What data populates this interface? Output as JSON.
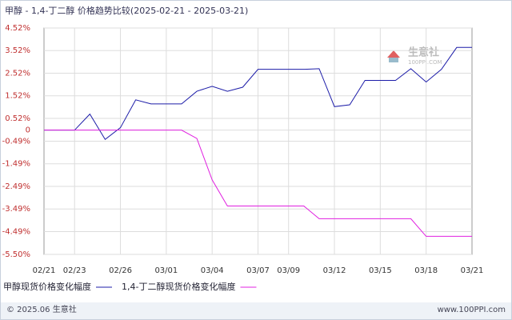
{
  "chart_data": {
    "type": "line",
    "title": "甲醇 - 1,4-丁二醇 价格趋势比较(2025-02-21 - 2025-03-21)",
    "categories": [
      "02/21",
      null,
      "02/23",
      null,
      null,
      "02/26",
      null,
      null,
      "03/01",
      null,
      null,
      "03/04",
      null,
      null,
      "03/07",
      null,
      "03/09",
      null,
      null,
      "03/12",
      null,
      null,
      "03/15",
      null,
      null,
      "03/18",
      null,
      null,
      "03/21"
    ],
    "series": [
      {
        "name": "甲醇现货价格变化幅度",
        "color": "#1c1ca8",
        "values": [
          0,
          0,
          0,
          0.71,
          -0.41,
          0.11,
          1.34,
          1.16,
          1.16,
          1.16,
          1.72,
          1.94,
          1.72,
          1.9,
          2.69,
          2.69,
          2.69,
          2.69,
          2.72,
          1.04,
          1.12,
          2.2,
          2.2,
          2.2,
          2.72,
          2.13,
          2.69,
          3.66,
          3.66
        ]
      },
      {
        "name": "1,4-丁二醇现货价格变化幅度",
        "color": "#e020e0",
        "values": [
          0,
          0,
          0,
          0,
          0,
          0,
          0,
          0,
          0,
          0,
          -0.37,
          -2.2,
          -3.36,
          -3.36,
          -3.36,
          -3.36,
          -3.36,
          -3.36,
          -3.92,
          -3.92,
          -3.92,
          -3.92,
          -3.92,
          -3.92,
          -3.92,
          -4.7,
          -4.7,
          -4.7,
          -4.7
        ]
      }
    ],
    "ylim": [
      -5.5,
      4.52
    ],
    "yticks": [
      {
        "value": 4.52,
        "label": "4.52%"
      },
      {
        "value": 3.52,
        "label": "3.52%"
      },
      {
        "value": 2.52,
        "label": "2.52%"
      },
      {
        "value": 1.52,
        "label": "1.52%"
      },
      {
        "value": 0.52,
        "label": "0.52%"
      },
      0,
      {
        "value": -0.49,
        "label": "-0.49%"
      },
      {
        "value": -1.49,
        "label": "-1.49%"
      },
      {
        "value": -2.49,
        "label": "-2.49%"
      },
      {
        "value": -3.49,
        "label": "-3.49%"
      },
      {
        "value": -4.49,
        "label": "-4.49%"
      },
      {
        "value": -5.5,
        "label": "-5.50%"
      }
    ],
    "grid": true,
    "watermark": [
      "生意社",
      "100PPI.COM"
    ],
    "footer_left": "© 2025.06 生意社",
    "footer_right": "www.100PPI.com"
  }
}
